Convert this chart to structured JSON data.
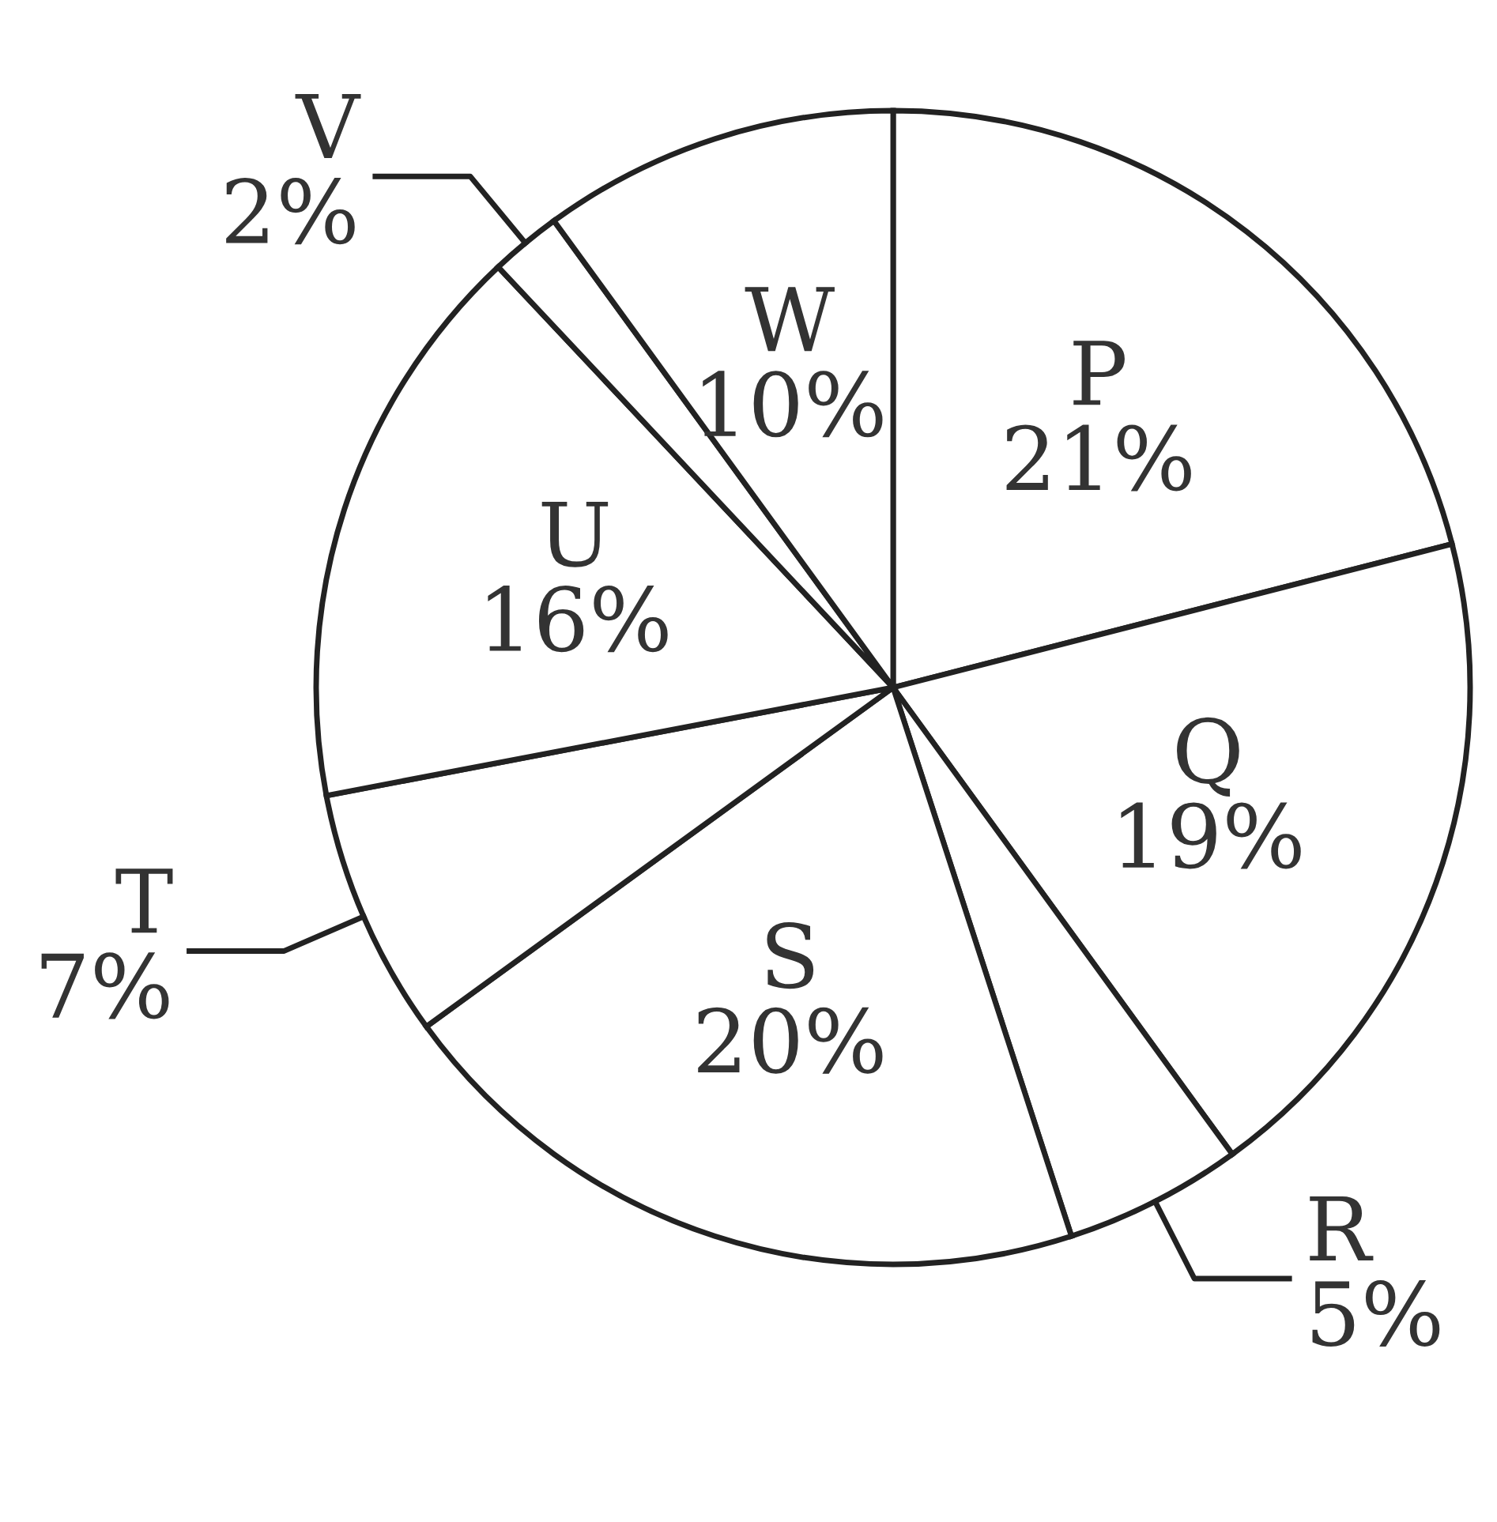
{
  "chart_data": {
    "type": "pie",
    "categories": [
      "P",
      "Q",
      "R",
      "S",
      "T",
      "U",
      "V",
      "W"
    ],
    "values": [
      21,
      19,
      5,
      20,
      7,
      16,
      2,
      10
    ],
    "colors": [
      "#ffffff",
      "#ffffff",
      "#ffffff",
      "#ffffff",
      "#ffffff",
      "#ffffff",
      "#ffffff",
      "#ffffff"
    ],
    "value_labels": [
      "21%",
      "19%",
      "5%",
      "20%",
      "7%",
      "16%",
      "2%",
      "10%"
    ]
  }
}
